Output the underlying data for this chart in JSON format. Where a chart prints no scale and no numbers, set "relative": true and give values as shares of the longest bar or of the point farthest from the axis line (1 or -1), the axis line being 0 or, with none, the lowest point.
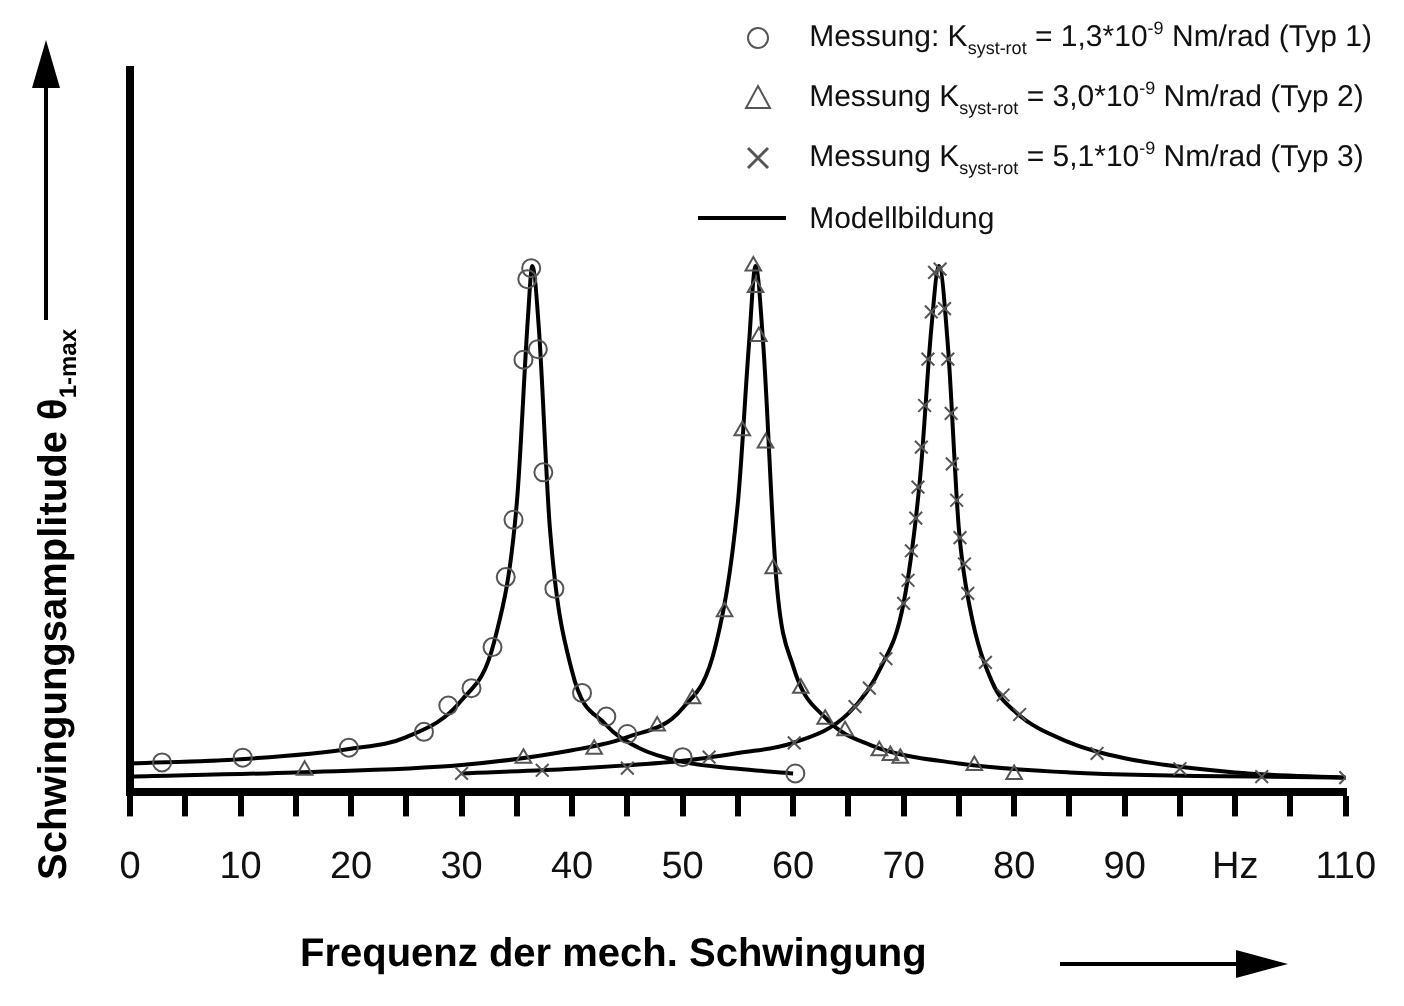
{
  "chart_data": {
    "type": "scatter",
    "relative": true,
    "xlabel": "Frequenz der mech. Schwingung",
    "ylabel": "Schwingungsamplitude θ$_{1-max}$",
    "legend": "top right",
    "grid": false,
    "xlim": [
      0,
      110
    ],
    "xticks": [
      0,
      {
        "value": 5,
        "label": null
      },
      10,
      {
        "value": 15,
        "label": null
      },
      20,
      {
        "value": 25,
        "label": null
      },
      30,
      {
        "value": 35,
        "label": null
      },
      40,
      {
        "value": 45,
        "label": null
      },
      50,
      {
        "value": 55,
        "label": null
      },
      60,
      {
        "value": 65,
        "label": null
      },
      70,
      {
        "value": 75,
        "label": null
      },
      80,
      {
        "value": 85,
        "label": null
      },
      90,
      {
        "value": 95,
        "label": null
      },
      {
        "value": 100,
        "label": "Hz"
      },
      {
        "value": 105,
        "label": null
      },
      110
    ],
    "series": [
      {
        "name": "Messung: K$_{syst-rot}$ = 1,3*10$^{-9}$ Nm/rad (Typ 1)",
        "marker": "circle",
        "color": "#555555",
        "x": [
          2.9,
          10.2,
          19.8,
          26.6,
          28.8,
          30.9,
          32.8,
          34.0,
          34.7,
          35.6,
          35.95,
          36.3,
          36.9,
          37.4,
          38.4,
          40.9,
          43.1,
          45.0,
          50.0,
          60.2
        ],
        "values": [
          0.057,
          0.066,
          0.085,
          0.115,
          0.165,
          0.198,
          0.276,
          0.409,
          0.518,
          0.822,
          0.975,
          0.996,
          0.842,
          0.608,
          0.387,
          0.189,
          0.144,
          0.111,
          0.067,
          0.036
        ]
      },
      {
        "name": "Messung K$_{syst-rot}$ = 3,0*10$^{-9}$ Nm/rad (Typ 2)",
        "marker": "triangle",
        "color": "#555555",
        "x": [
          15.8,
          35.6,
          42.0,
          47.7,
          50.9,
          53.8,
          55.4,
          56.4,
          56.6,
          56.9,
          57.5,
          58.2,
          60.7,
          62.9,
          64.7,
          67.8,
          68.8,
          69.7,
          76.4,
          80.0
        ],
        "values": [
          0.042,
          0.065,
          0.082,
          0.126,
          0.178,
          0.343,
          0.687,
          1.0,
          0.959,
          0.866,
          0.664,
          0.425,
          0.198,
          0.139,
          0.117,
          0.079,
          0.07,
          0.065,
          0.051,
          0.034
        ]
      },
      {
        "name": "Messung K$_{syst-rot}$ = 5,1*10$^{-9}$ Nm/rad (Typ 3)",
        "marker": "cross",
        "color": "#555555",
        "x": [
          30.0,
          37.3,
          45.0,
          52.4,
          60.1,
          65.6,
          66.9,
          68.4,
          70.0,
          70.4,
          70.7,
          71.1,
          71.3,
          71.6,
          71.9,
          72.2,
          72.5,
          72.8,
          73.3,
          73.7,
          74.0,
          74.3,
          74.4,
          74.8,
          75.1,
          75.5,
          75.8,
          77.4,
          79.0,
          80.5,
          87.5,
          95.0,
          102.4,
          110.0
        ],
        "values": [
          0.036,
          0.042,
          0.046,
          0.067,
          0.094,
          0.163,
          0.198,
          0.254,
          0.359,
          0.403,
          0.459,
          0.521,
          0.58,
          0.656,
          0.735,
          0.823,
          0.913,
          0.988,
          0.994,
          0.919,
          0.823,
          0.72,
          0.624,
          0.555,
          0.484,
          0.434,
          0.378,
          0.247,
          0.185,
          0.148,
          0.074,
          0.045,
          0.03,
          0.028
        ]
      },
      {
        "name": "Modellbildung",
        "type": "line",
        "marker": "none",
        "color": "#000000",
        "x": [
          0,
          10,
          20,
          25,
          30,
          33,
          35,
          36,
          36.4,
          37,
          38,
          40,
          43,
          46,
          50,
          55,
          60
        ],
        "values": [
          0.055,
          0.063,
          0.083,
          0.105,
          0.175,
          0.29,
          0.55,
          0.9,
          1.0,
          0.88,
          0.5,
          0.23,
          0.13,
          0.085,
          0.058,
          0.045,
          0.036
        ]
      },
      {
        "type": "line",
        "marker": "none",
        "color": "#000000",
        "x": [
          0,
          15,
          30,
          40,
          45,
          50,
          53,
          55,
          56,
          56.6,
          57.3,
          58.5,
          60,
          63,
          67,
          75,
          85,
          110
        ],
        "values": [
          0.03,
          0.038,
          0.052,
          0.08,
          0.105,
          0.16,
          0.28,
          0.55,
          0.85,
          1.0,
          0.85,
          0.4,
          0.24,
          0.14,
          0.09,
          0.055,
          0.038,
          0.028
        ]
      },
      {
        "type": "line",
        "marker": "none",
        "color": "#000000",
        "x": [
          30,
          40,
          50,
          55,
          60,
          65,
          68,
          70,
          71.5,
          72.5,
          73.2,
          74,
          75,
          76,
          78,
          80,
          85,
          90,
          100,
          110
        ],
        "values": [
          0.036,
          0.045,
          0.06,
          0.075,
          0.094,
          0.15,
          0.24,
          0.36,
          0.6,
          0.88,
          1.0,
          0.85,
          0.5,
          0.35,
          0.21,
          0.155,
          0.095,
          0.065,
          0.038,
          0.028
        ]
      }
    ]
  }
}
